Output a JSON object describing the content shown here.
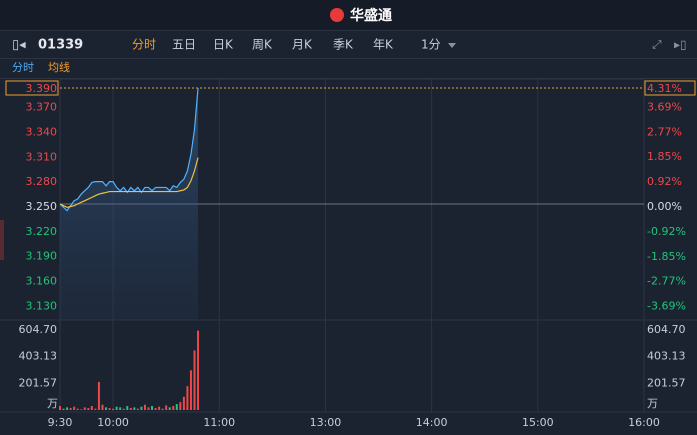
{
  "header": {
    "logo": "华盛通"
  },
  "toolbar": {
    "code": "01339",
    "tabs": [
      "分时",
      "五日",
      "日K",
      "周K",
      "月K",
      "季K",
      "年K",
      "1分"
    ]
  },
  "indicators": [
    "分时",
    "均线"
  ],
  "chart_data": {
    "type": "line",
    "x": [
      0,
      2,
      4,
      6,
      8,
      10,
      12,
      14,
      16,
      18,
      20,
      22,
      24,
      26,
      28,
      30,
      32,
      34,
      36,
      38,
      40,
      42,
      44,
      46,
      48,
      50,
      52,
      54,
      56,
      58,
      60,
      62,
      64,
      66,
      68,
      70,
      72,
      74,
      76,
      78
    ],
    "series": [
      {
        "color": "#4fb3ff",
        "values": [
          3.25,
          3.246,
          3.242,
          3.248,
          3.254,
          3.256,
          3.262,
          3.266,
          3.27,
          3.276,
          3.277,
          3.277,
          3.277,
          3.272,
          3.277,
          3.277,
          3.27,
          3.266,
          3.27,
          3.264,
          3.27,
          3.266,
          3.27,
          3.264,
          3.27,
          3.27,
          3.266,
          3.27,
          3.27,
          3.27,
          3.27,
          3.266,
          3.272,
          3.27,
          3.276,
          3.28,
          3.29,
          3.31,
          3.34,
          3.39
        ]
      },
      {
        "color": "#f0c040",
        "values": [
          3.25,
          3.248,
          3.246,
          3.247,
          3.248,
          3.25,
          3.252,
          3.254,
          3.256,
          3.258,
          3.26,
          3.262,
          3.263,
          3.264,
          3.265,
          3.265,
          3.265,
          3.265,
          3.265,
          3.265,
          3.265,
          3.265,
          3.265,
          3.265,
          3.265,
          3.265,
          3.265,
          3.265,
          3.265,
          3.265,
          3.265,
          3.265,
          3.265,
          3.265,
          3.266,
          3.267,
          3.27,
          3.278,
          3.29,
          3.306
        ]
      }
    ],
    "volume": [
      30,
      10,
      20,
      15,
      25,
      10,
      5,
      20,
      15,
      30,
      10,
      212,
      40,
      20,
      15,
      10,
      25,
      20,
      10,
      30,
      15,
      20,
      10,
      25,
      40,
      20,
      30,
      15,
      25,
      10,
      35,
      20,
      30,
      45,
      60,
      100,
      180,
      300,
      450,
      600
    ],
    "volume_unit": "万",
    "xlim": [
      0,
      330
    ],
    "xticks": [
      {
        "value": 0,
        "label": "9:30"
      },
      {
        "value": 30,
        "label": "10:00"
      },
      {
        "value": 90,
        "label": "11:00"
      },
      {
        "value": 150,
        "label": "13:00"
      },
      {
        "value": 210,
        "label": "14:00"
      },
      {
        "value": 270,
        "label": "15:00"
      },
      {
        "value": 330,
        "label": "16:00"
      }
    ],
    "ylim": [
      3.11,
      3.39
    ],
    "yticks": [
      {
        "value": 3.39,
        "label": "3.390"
      },
      {
        "value": 3.37,
        "label": "3.370"
      },
      {
        "value": 3.34,
        "label": "3.340"
      },
      {
        "value": 3.31,
        "label": "3.310"
      },
      {
        "value": 3.28,
        "label": "3.280"
      },
      {
        "value": 3.25,
        "label": "3.250"
      },
      {
        "value": 3.22,
        "label": "3.220"
      },
      {
        "value": 3.19,
        "label": "3.190"
      },
      {
        "value": 3.16,
        "label": "3.160"
      },
      {
        "value": 3.13,
        "label": "3.130"
      }
    ],
    "y2lim": [
      -4.31,
      4.31
    ],
    "y2ticks": [
      {
        "value": 4.31,
        "label": "4.31%"
      },
      {
        "value": 3.69,
        "label": "3.69%"
      },
      {
        "value": 2.77,
        "label": "2.77%"
      },
      {
        "value": 1.85,
        "label": "1.85%"
      },
      {
        "value": 0.92,
        "label": "0.92%"
      },
      {
        "value": 0,
        "label": "0.00%"
      },
      {
        "value": -0.92,
        "label": "-0.92%"
      },
      {
        "value": -1.85,
        "label": "-1.85%"
      },
      {
        "value": -2.77,
        "label": "-2.77%"
      },
      {
        "value": -3.69,
        "label": "-3.69%"
      }
    ],
    "vlim": [
      0,
      604.7
    ],
    "vticks": [
      {
        "value": 604.7,
        "label": "604.70"
      },
      403.13,
      201.57
    ],
    "up_color": "#f04848",
    "down_color": "#22c47a"
  }
}
